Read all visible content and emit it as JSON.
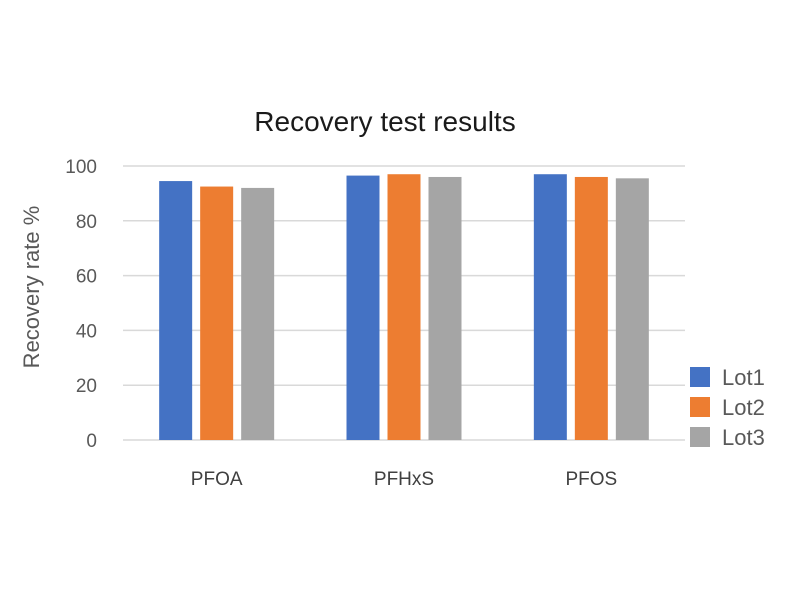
{
  "chart_data": {
    "type": "bar",
    "title": "Recovery test results",
    "xlabel": "",
    "ylabel": "Recovery rate %",
    "categories": [
      "PFOA",
      "PFHxS",
      "PFOS"
    ],
    "series": [
      {
        "name": "Lot1",
        "values": [
          94.5,
          96.5,
          97
        ],
        "color": "#4472c4"
      },
      {
        "name": "Lot2",
        "values": [
          92.5,
          97,
          96
        ],
        "color": "#ed7d31"
      },
      {
        "name": "Lot3",
        "values": [
          92,
          96,
          95.5
        ],
        "color": "#a5a5a5"
      }
    ],
    "ylim": [
      0,
      100
    ],
    "yticks": [
      0,
      20,
      40,
      60,
      80,
      100
    ],
    "grid": true,
    "legend_position": "right"
  }
}
